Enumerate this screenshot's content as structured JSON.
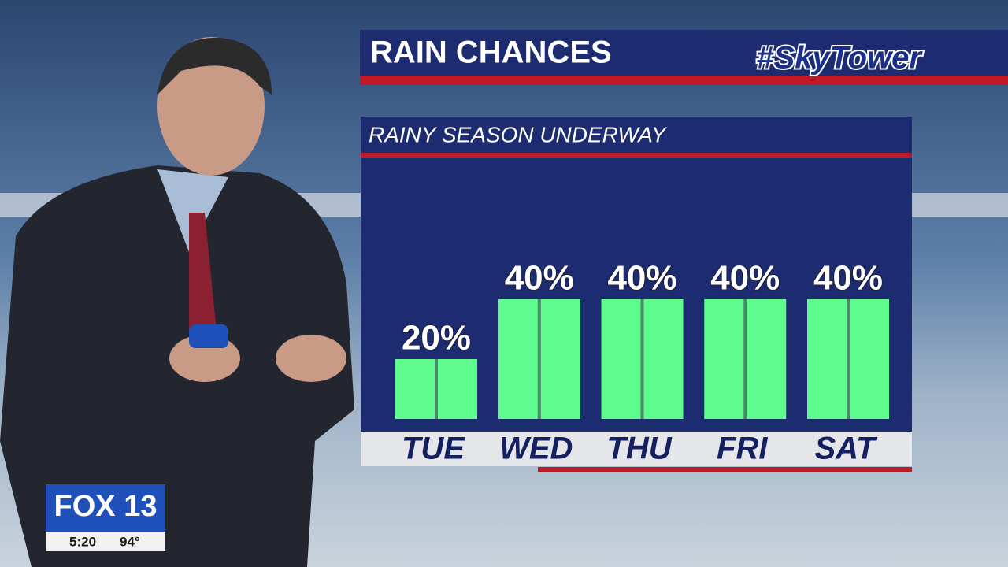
{
  "chart_data": {
    "type": "bar",
    "title": "RAIN CHANCES",
    "subtitle": "RAINY SEASON UNDERWAY",
    "categories": [
      "TUE",
      "WED",
      "THU",
      "FRI",
      "SAT"
    ],
    "values": [
      20,
      40,
      40,
      40,
      40
    ],
    "value_labels": [
      "20%",
      "40%",
      "40%",
      "40%",
      "40%"
    ],
    "color": "#5efc8c"
  },
  "branding": {
    "logo": "#SkyTower",
    "station": "FOX 13",
    "time": "5:20",
    "temperature": "94°"
  }
}
